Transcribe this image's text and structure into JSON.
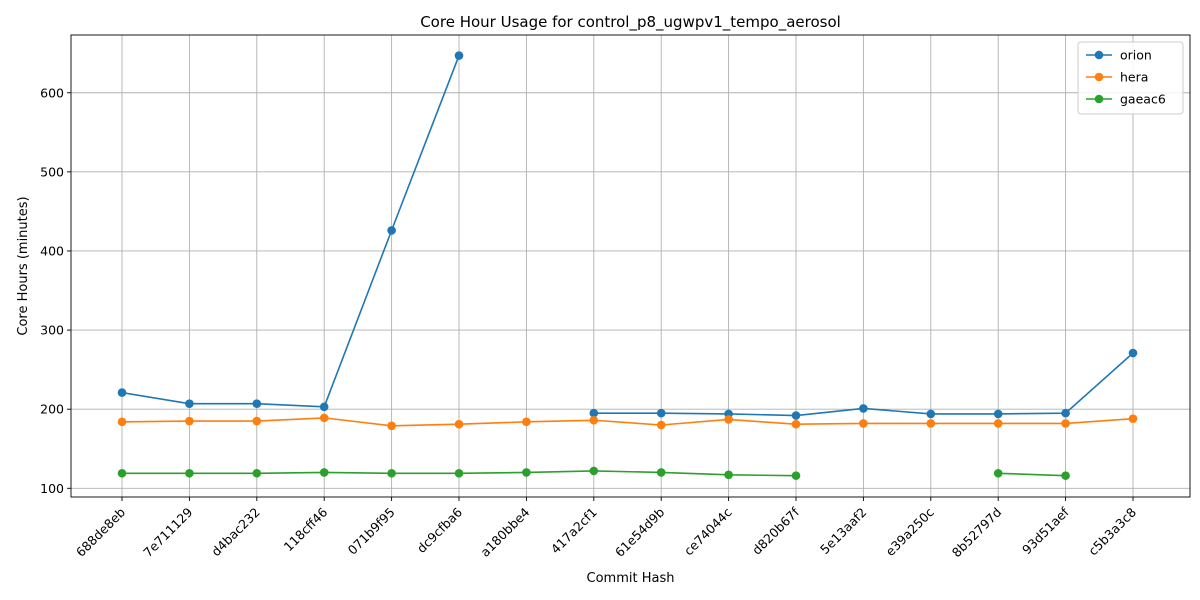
{
  "chart_data": {
    "type": "line",
    "title": "Core Hour Usage for control_p8_ugwpv1_tempo_aerosol",
    "xlabel": "Commit Hash",
    "ylabel": "Core Hours (minutes)",
    "categories": [
      "688de8eb",
      "7e711129",
      "d4bac232",
      "118cff46",
      "071b9f95",
      "dc9cfba6",
      "a180bbe4",
      "417a2cf1",
      "61e54d9b",
      "ce74044c",
      "d820b67f",
      "5e13aaf2",
      "e39a250c",
      "8b52797d",
      "93d51aef",
      "c5b3a3c8"
    ],
    "yticks": [
      100,
      200,
      300,
      400,
      500,
      600
    ],
    "ylim": [
      89,
      673
    ],
    "grid": true,
    "legend_position": "top-right",
    "series": [
      {
        "name": "orion",
        "color": "#1f77b4",
        "values": [
          221,
          207,
          207,
          203,
          426,
          647,
          null,
          195,
          195,
          194,
          192,
          201,
          194,
          194,
          195,
          271
        ]
      },
      {
        "name": "hera",
        "color": "#ff7f0e",
        "values": [
          184,
          185,
          185,
          189,
          179,
          181,
          184,
          186,
          180,
          187,
          181,
          182,
          182,
          182,
          182,
          188
        ]
      },
      {
        "name": "gaeac6",
        "color": "#2ca02c",
        "values": [
          119,
          119,
          119,
          120,
          119,
          119,
          120,
          122,
          120,
          117,
          116,
          null,
          null,
          119,
          116,
          null
        ]
      }
    ]
  }
}
